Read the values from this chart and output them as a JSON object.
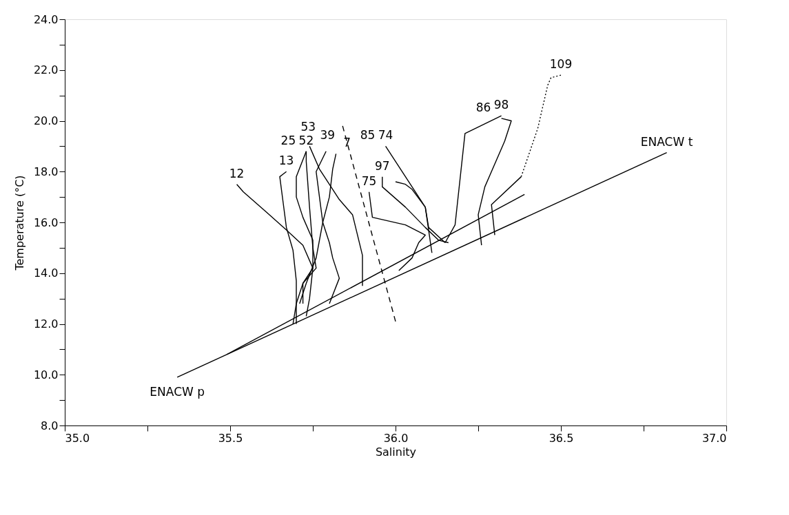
{
  "chart_data": {
    "type": "line",
    "xlabel": "Salinity",
    "ylabel": "Temperature (°C)",
    "xlim": [
      35.0,
      37.0
    ],
    "xticks": [
      {
        "value": 35.0,
        "label": "35.0"
      },
      {
        "value": 35.25,
        "label": null
      },
      {
        "value": 35.5,
        "label": "35.5"
      },
      {
        "value": 35.75,
        "label": null
      },
      {
        "value": 36.0,
        "label": "36.0"
      },
      {
        "value": 36.25,
        "label": null
      },
      {
        "value": 36.5,
        "label": "36.5"
      },
      {
        "value": 36.75,
        "label": null
      },
      {
        "value": 37.0,
        "label": "37.0"
      }
    ],
    "ylim": [
      8.0,
      24.0
    ],
    "yticks": [
      {
        "value": 8,
        "label": "8.0"
      },
      {
        "value": 9,
        "label": null
      },
      {
        "value": 10,
        "label": "10.0"
      },
      {
        "value": 11,
        "label": null
      },
      {
        "value": 12,
        "label": "12.0"
      },
      {
        "value": 13,
        "label": null
      },
      {
        "value": 14,
        "label": "14.0"
      },
      {
        "value": 15,
        "label": null
      },
      {
        "value": 16,
        "label": "16.0"
      },
      {
        "value": 17,
        "label": null
      },
      {
        "value": 18,
        "label": "18.0"
      },
      {
        "value": 19,
        "label": null
      },
      {
        "value": 20,
        "label": "20.0"
      },
      {
        "value": 21,
        "label": null
      },
      {
        "value": 22,
        "label": "22.0"
      },
      {
        "value": 23,
        "label": null
      },
      {
        "value": 24,
        "label": "24.0"
      }
    ],
    "grid": false,
    "marker": "none",
    "series": [
      {
        "color": "#000000",
        "x": [
          35.34,
          36.82
        ],
        "values": [
          9.9,
          18.75
        ]
      },
      {
        "color": "#000000",
        "x": [
          35.49,
          36.39
        ],
        "values": [
          10.8,
          17.1
        ]
      },
      {
        "color": "#000000",
        "line_style": "dashed",
        "x": [
          35.84,
          36.0
        ],
        "values": [
          19.8,
          12.1
        ]
      },
      {
        "color": "#000000",
        "x": [
          35.52,
          35.54,
          35.61,
          35.67,
          35.72,
          35.75,
          35.72,
          35.7,
          35.69
        ],
        "values": [
          17.5,
          17.2,
          16.4,
          15.7,
          15.1,
          14.2,
          13.6,
          12.8,
          12.0
        ]
      },
      {
        "color": "#000000",
        "x": [
          35.67,
          35.65,
          35.66,
          35.67,
          35.69,
          35.7,
          35.7,
          35.7
        ],
        "values": [
          18.0,
          17.8,
          16.8,
          15.8,
          14.9,
          13.7,
          12.8,
          12.0
        ]
      },
      {
        "color": "#000000",
        "x": [
          35.73,
          35.7,
          35.7,
          35.72,
          35.75,
          35.75,
          35.74,
          35.73
        ],
        "values": [
          18.8,
          17.8,
          17.0,
          16.2,
          15.3,
          14.2,
          13.0,
          12.3
        ]
      },
      {
        "color": "#000000",
        "x": [
          35.73,
          35.73,
          35.74,
          35.75,
          35.76,
          35.72,
          35.72
        ],
        "values": [
          18.8,
          18.4,
          16.6,
          15.0,
          14.2,
          13.6,
          12.8
        ]
      },
      {
        "color": "#000000",
        "x": [
          35.74,
          35.77,
          35.83,
          35.87,
          35.9,
          35.9
        ],
        "values": [
          19.0,
          18.1,
          16.9,
          16.3,
          14.7,
          13.5
        ]
      },
      {
        "color": "#000000",
        "x": [
          35.79,
          35.76,
          35.77,
          35.78,
          35.8,
          35.81,
          35.83,
          35.8
        ],
        "values": [
          18.8,
          18.0,
          17.0,
          16.0,
          15.2,
          14.6,
          13.8,
          12.8
        ]
      },
      {
        "color": "#000000",
        "x": [
          35.82,
          35.81,
          35.8,
          35.78,
          35.76,
          35.73,
          35.71
        ],
        "values": [
          18.7,
          18.1,
          17.0,
          16.0,
          14.6,
          13.6,
          12.8
        ]
      },
      {
        "color": "#000000",
        "x": [
          35.92,
          35.93,
          36.03,
          36.09,
          36.07,
          36.05,
          36.01
        ],
        "values": [
          17.2,
          16.2,
          15.9,
          15.5,
          15.2,
          14.6,
          14.1
        ]
      },
      {
        "color": "#000000",
        "x": [
          35.97,
          36.05,
          36.09,
          36.1,
          36.11
        ],
        "values": [
          19.0,
          17.4,
          16.6,
          15.7,
          14.8
        ]
      },
      {
        "color": "#000000",
        "x": [
          35.96,
          35.96,
          36.03,
          36.09,
          36.13,
          36.16
        ],
        "values": [
          17.8,
          17.4,
          16.6,
          15.8,
          15.3,
          15.2
        ]
      },
      {
        "color": "#000000",
        "x": [
          36.0,
          36.03,
          36.05,
          36.09,
          36.1,
          36.15
        ],
        "values": [
          17.6,
          17.5,
          17.3,
          16.6,
          15.8,
          15.2
        ]
      },
      {
        "color": "#000000",
        "x": [
          36.32,
          36.21,
          36.18,
          36.15
        ],
        "values": [
          20.2,
          19.5,
          15.9,
          15.2
        ]
      },
      {
        "color": "#000000",
        "x": [
          36.32,
          36.35,
          36.33,
          36.27,
          36.25,
          36.26
        ],
        "values": [
          20.1,
          20.0,
          19.2,
          17.4,
          16.3,
          15.1
        ]
      },
      {
        "color": "#000000",
        "line_style": "dotted",
        "x": [
          36.5,
          36.47,
          36.46,
          36.43,
          36.38
        ],
        "values": [
          21.8,
          21.7,
          21.4,
          19.7,
          17.8
        ]
      },
      {
        "color": "#000000",
        "x": [
          36.38,
          36.29,
          36.3
        ],
        "values": [
          17.8,
          16.7,
          15.5
        ]
      }
    ],
    "annotations": [
      {
        "text": "12",
        "x": 35.52,
        "y": 17.5
      },
      {
        "text": "13",
        "x": 35.67,
        "y": 18.0
      },
      {
        "text": "52",
        "x": 35.73,
        "y": 18.8
      },
      {
        "text": "39",
        "x": 35.74,
        "y": 19.0
      },
      {
        "text": "25",
        "x": 35.73,
        "y": 18.8
      },
      {
        "text": "53",
        "x": 35.79,
        "y": 18.8
      },
      {
        "text": "7",
        "x": 35.82,
        "y": 18.7
      },
      {
        "text": "74",
        "x": 35.97,
        "y": 19.0
      },
      {
        "text": "85",
        "x": 35.97,
        "y": 19.0
      },
      {
        "text": "75",
        "x": 35.92,
        "y": 17.2
      },
      {
        "text": "97",
        "x": 35.96,
        "y": 17.8
      },
      {
        "text": "98",
        "x": 36.32,
        "y": 20.2
      },
      {
        "text": "86",
        "x": 36.32,
        "y": 20.1
      },
      {
        "text": "109",
        "x": 36.5,
        "y": 21.8
      },
      {
        "text": "ENACW t",
        "x": 36.82,
        "y": 18.75
      },
      {
        "text": "ENACW p",
        "x": 35.34,
        "y": 9.9
      }
    ]
  }
}
